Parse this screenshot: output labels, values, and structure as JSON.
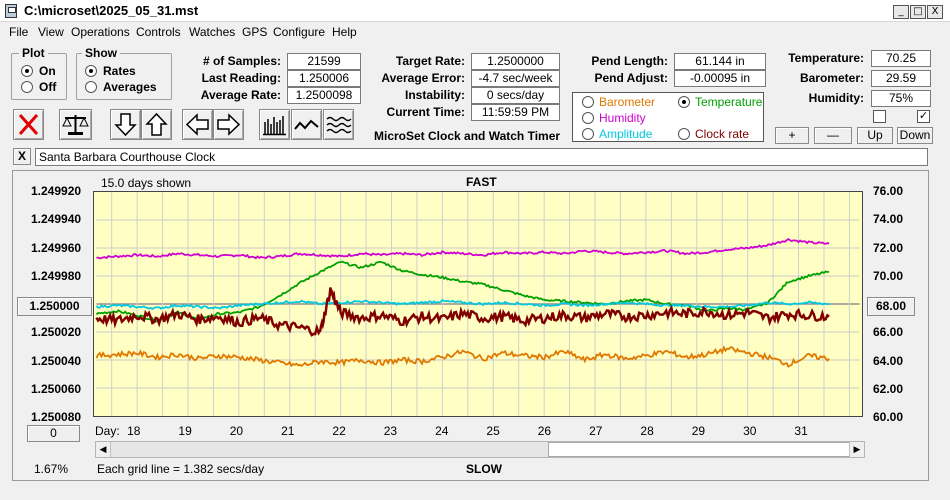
{
  "window": {
    "title": "C:\\microset\\2025_05_31.mst",
    "minimize": "_",
    "restore": "□",
    "close": "X"
  },
  "menu": [
    "File",
    "View",
    "Operations",
    "Controls",
    "Watches",
    "GPS",
    "Configure",
    "Help"
  ],
  "plot_group": {
    "title": "Plot",
    "options": [
      "On",
      "Off"
    ],
    "selected": "On"
  },
  "show_group": {
    "title": "Show",
    "options": [
      "Rates",
      "Averages"
    ],
    "selected": "Rates"
  },
  "stats": {
    "samples_label": "# of Samples:",
    "samples": "21599",
    "last_reading_label": "Last Reading:",
    "last_reading": "1.250006",
    "average_rate_label": "Average Rate:",
    "average_rate": "1.2500098"
  },
  "rates": {
    "target_rate_label": "Target Rate:",
    "target_rate": "1.2500000",
    "average_error_label": "Average Error:",
    "average_error": "-4.7 sec/week",
    "instability_label": "Instability:",
    "instability": "0 secs/day",
    "current_time_label": "Current Time:",
    "current_time": "11:59:59 PM"
  },
  "app_name": "MicroSet Clock and Watch Timer",
  "pendulum": {
    "length_label": "Pend Length:",
    "length": "61.144 in",
    "adjust_label": "Pend Adjust:",
    "adjust": "-0.00095 in"
  },
  "sensor_select": {
    "options": [
      {
        "label": "Barometer",
        "color": "#e07800",
        "selected": false
      },
      {
        "label": "Temperature",
        "color": "#00a000",
        "selected": true
      },
      {
        "label": "Humidity",
        "color": "#d000d0",
        "selected": false
      },
      {
        "label": "Amplitude",
        "color": "#00c8e0",
        "selected": false
      },
      {
        "label": "Clock rate",
        "color": "#800000",
        "selected": false
      }
    ]
  },
  "environment": {
    "temperature_label": "Temperature:",
    "temperature": "70.25",
    "barometer_label": "Barometer:",
    "barometer": "29.59",
    "humidity_label": "Humidity:",
    "humidity": "75%",
    "checkbox1": false,
    "checkbox2": true
  },
  "scale_buttons": {
    "plus": "+",
    "minus": "—",
    "up": "Up",
    "down": "Down"
  },
  "toolbar_icons": [
    "clear-icon",
    "balance-scale-icon",
    "arrow-down-icon",
    "arrow-up-icon",
    "arrow-left-icon",
    "arrow-right-icon",
    "bar-graph-icon",
    "line-graph-icon",
    "wave-graph-icon"
  ],
  "clock_name": {
    "close": "X",
    "value": "Santa Barbara Courthouse Clock"
  },
  "chart_data": {
    "type": "line",
    "top_label": "FAST",
    "bottom_label": "SLOW",
    "days_shown": "15.0 days shown",
    "grid_note": "Each grid line = 1.382 secs/day",
    "percent": "1.67%",
    "left_axis_ticks": [
      "1.249920",
      "1.249940",
      "1.249960",
      "1.249980",
      "1.250000",
      "1.250020",
      "1.250040",
      "1.250060",
      "1.250080"
    ],
    "left_axis_button": "1.250000",
    "right_axis_ticks": [
      "76.00",
      "74.00",
      "72.00",
      "70.00",
      "68.00",
      "66.00",
      "64.00",
      "62.00",
      "60.00"
    ],
    "right_axis_button": "68.00",
    "bottom_button": "0",
    "x_label": "Day:",
    "x_ticks": [
      "18",
      "19",
      "20",
      "21",
      "22",
      "23",
      "24",
      "25",
      "26",
      "27",
      "28",
      "29",
      "30",
      "31"
    ],
    "x_range_days": [
      17.2,
      32.2
    ],
    "left_ylim": [
      1.24992,
      1.25008
    ],
    "right_ylim": [
      60,
      76
    ],
    "series": [
      {
        "name": "Humidity",
        "color": "#d000d0",
        "x": [
          17.2,
          17.6,
          18.0,
          18.4,
          18.8,
          19.2,
          19.6,
          20.0,
          20.4,
          20.8,
          21.2,
          21.6,
          22.0,
          22.4,
          22.8,
          23.2,
          23.6,
          24.0,
          24.4,
          24.8,
          25.2,
          25.6,
          26.0,
          26.4,
          26.8,
          27.2,
          27.6,
          28.0,
          28.4,
          28.8,
          29.2,
          29.6,
          30.0,
          30.4,
          30.8,
          31.2,
          31.6
        ],
        "y": [
          71.3,
          71.4,
          71.5,
          71.4,
          71.6,
          71.5,
          71.4,
          71.5,
          71.3,
          71.4,
          71.6,
          71.5,
          71.4,
          71.6,
          71.5,
          71.6,
          71.5,
          71.7,
          71.6,
          71.5,
          71.7,
          71.6,
          71.7,
          71.6,
          71.8,
          71.7,
          71.6,
          71.7,
          71.8,
          71.6,
          71.7,
          71.9,
          72.0,
          72.2,
          72.6,
          72.4,
          72.3
        ]
      },
      {
        "name": "Temperature",
        "color": "#00a000",
        "x": [
          17.2,
          17.6,
          18.0,
          18.4,
          18.8,
          19.2,
          19.6,
          20.0,
          20.4,
          20.8,
          21.2,
          21.6,
          22.0,
          22.4,
          22.8,
          23.2,
          23.6,
          24.0,
          24.4,
          24.8,
          25.2,
          25.6,
          26.0,
          26.4,
          26.8,
          27.2,
          27.6,
          28.0,
          28.4,
          28.8,
          29.2,
          29.6,
          30.0,
          30.4,
          30.8,
          31.2,
          31.6
        ],
        "y": [
          67.3,
          67.5,
          67.2,
          66.8,
          67.4,
          66.9,
          67.3,
          67.4,
          67.8,
          68.6,
          69.5,
          70.3,
          71.0,
          70.6,
          71.0,
          70.4,
          70.1,
          69.9,
          69.6,
          69.4,
          69.0,
          68.6,
          68.3,
          68.2,
          68.1,
          68.0,
          68.2,
          68.3,
          68.0,
          67.9,
          67.5,
          67.7,
          67.6,
          68.1,
          69.6,
          70.0,
          70.3
        ]
      },
      {
        "name": "Amplitude",
        "color": "#00c8e0",
        "x": [
          17.2,
          17.6,
          18.0,
          18.4,
          18.8,
          19.2,
          19.6,
          20.0,
          20.4,
          20.8,
          21.2,
          21.6,
          22.0,
          22.4,
          22.8,
          23.2,
          23.6,
          24.0,
          24.4,
          24.8,
          25.2,
          25.6,
          26.0,
          26.4,
          26.8,
          27.2,
          27.6,
          28.0,
          28.4,
          28.8,
          29.2,
          29.6,
          30.0,
          30.4,
          30.8,
          31.2,
          31.6
        ],
        "y": [
          67.8,
          67.9,
          67.8,
          67.7,
          67.9,
          67.8,
          67.7,
          67.9,
          68.0,
          68.1,
          68.2,
          68.0,
          68.1,
          68.2,
          68.1,
          68.0,
          68.1,
          68.2,
          68.1,
          68.0,
          68.1,
          68.0,
          67.9,
          68.0,
          67.9,
          68.0,
          68.1,
          68.0,
          67.9,
          67.9,
          67.8,
          67.8,
          67.9,
          68.1,
          68.0,
          68.1,
          68.0
        ]
      },
      {
        "name": "Clock rate",
        "color": "#800000",
        "x": [
          17.2,
          17.6,
          18.0,
          18.4,
          18.8,
          19.2,
          19.6,
          20.0,
          20.4,
          20.8,
          21.2,
          21.6,
          21.8,
          22.0,
          22.4,
          22.8,
          23.2,
          23.6,
          24.0,
          24.4,
          24.8,
          25.2,
          25.6,
          26.0,
          26.4,
          26.8,
          27.2,
          27.6,
          28.0,
          28.4,
          28.8,
          29.2,
          29.6,
          30.0,
          30.4,
          30.8,
          31.2,
          31.6
        ],
        "y": [
          67.0,
          66.8,
          67.2,
          66.9,
          67.3,
          66.9,
          67.1,
          66.7,
          67.0,
          66.5,
          66.3,
          66.0,
          69.0,
          67.4,
          67.0,
          67.2,
          66.8,
          67.1,
          66.9,
          67.3,
          67.0,
          67.1,
          66.8,
          67.0,
          67.2,
          67.0,
          67.3,
          67.1,
          67.2,
          67.4,
          67.3,
          67.5,
          67.2,
          67.4,
          67.0,
          67.3,
          67.2,
          67.1
        ]
      },
      {
        "name": "Barometer",
        "color": "#e07800",
        "x": [
          17.2,
          17.6,
          18.0,
          18.4,
          18.8,
          19.2,
          19.6,
          20.0,
          20.4,
          20.8,
          21.2,
          21.6,
          22.0,
          22.4,
          22.8,
          23.2,
          23.6,
          24.0,
          24.4,
          24.8,
          25.2,
          25.6,
          26.0,
          26.4,
          26.8,
          27.2,
          27.6,
          28.0,
          28.4,
          28.8,
          29.2,
          29.6,
          30.0,
          30.4,
          30.8,
          31.2,
          31.6
        ],
        "y": [
          64.3,
          64.4,
          64.5,
          64.2,
          64.4,
          64.1,
          64.3,
          64.2,
          64.0,
          63.8,
          63.6,
          63.9,
          63.8,
          64.0,
          63.8,
          64.0,
          63.9,
          64.2,
          64.6,
          64.1,
          64.5,
          64.3,
          64.2,
          64.6,
          64.0,
          64.4,
          64.1,
          64.3,
          64.6,
          64.2,
          64.4,
          64.8,
          64.5,
          64.2,
          63.7,
          64.3,
          64.1
        ]
      }
    ]
  }
}
